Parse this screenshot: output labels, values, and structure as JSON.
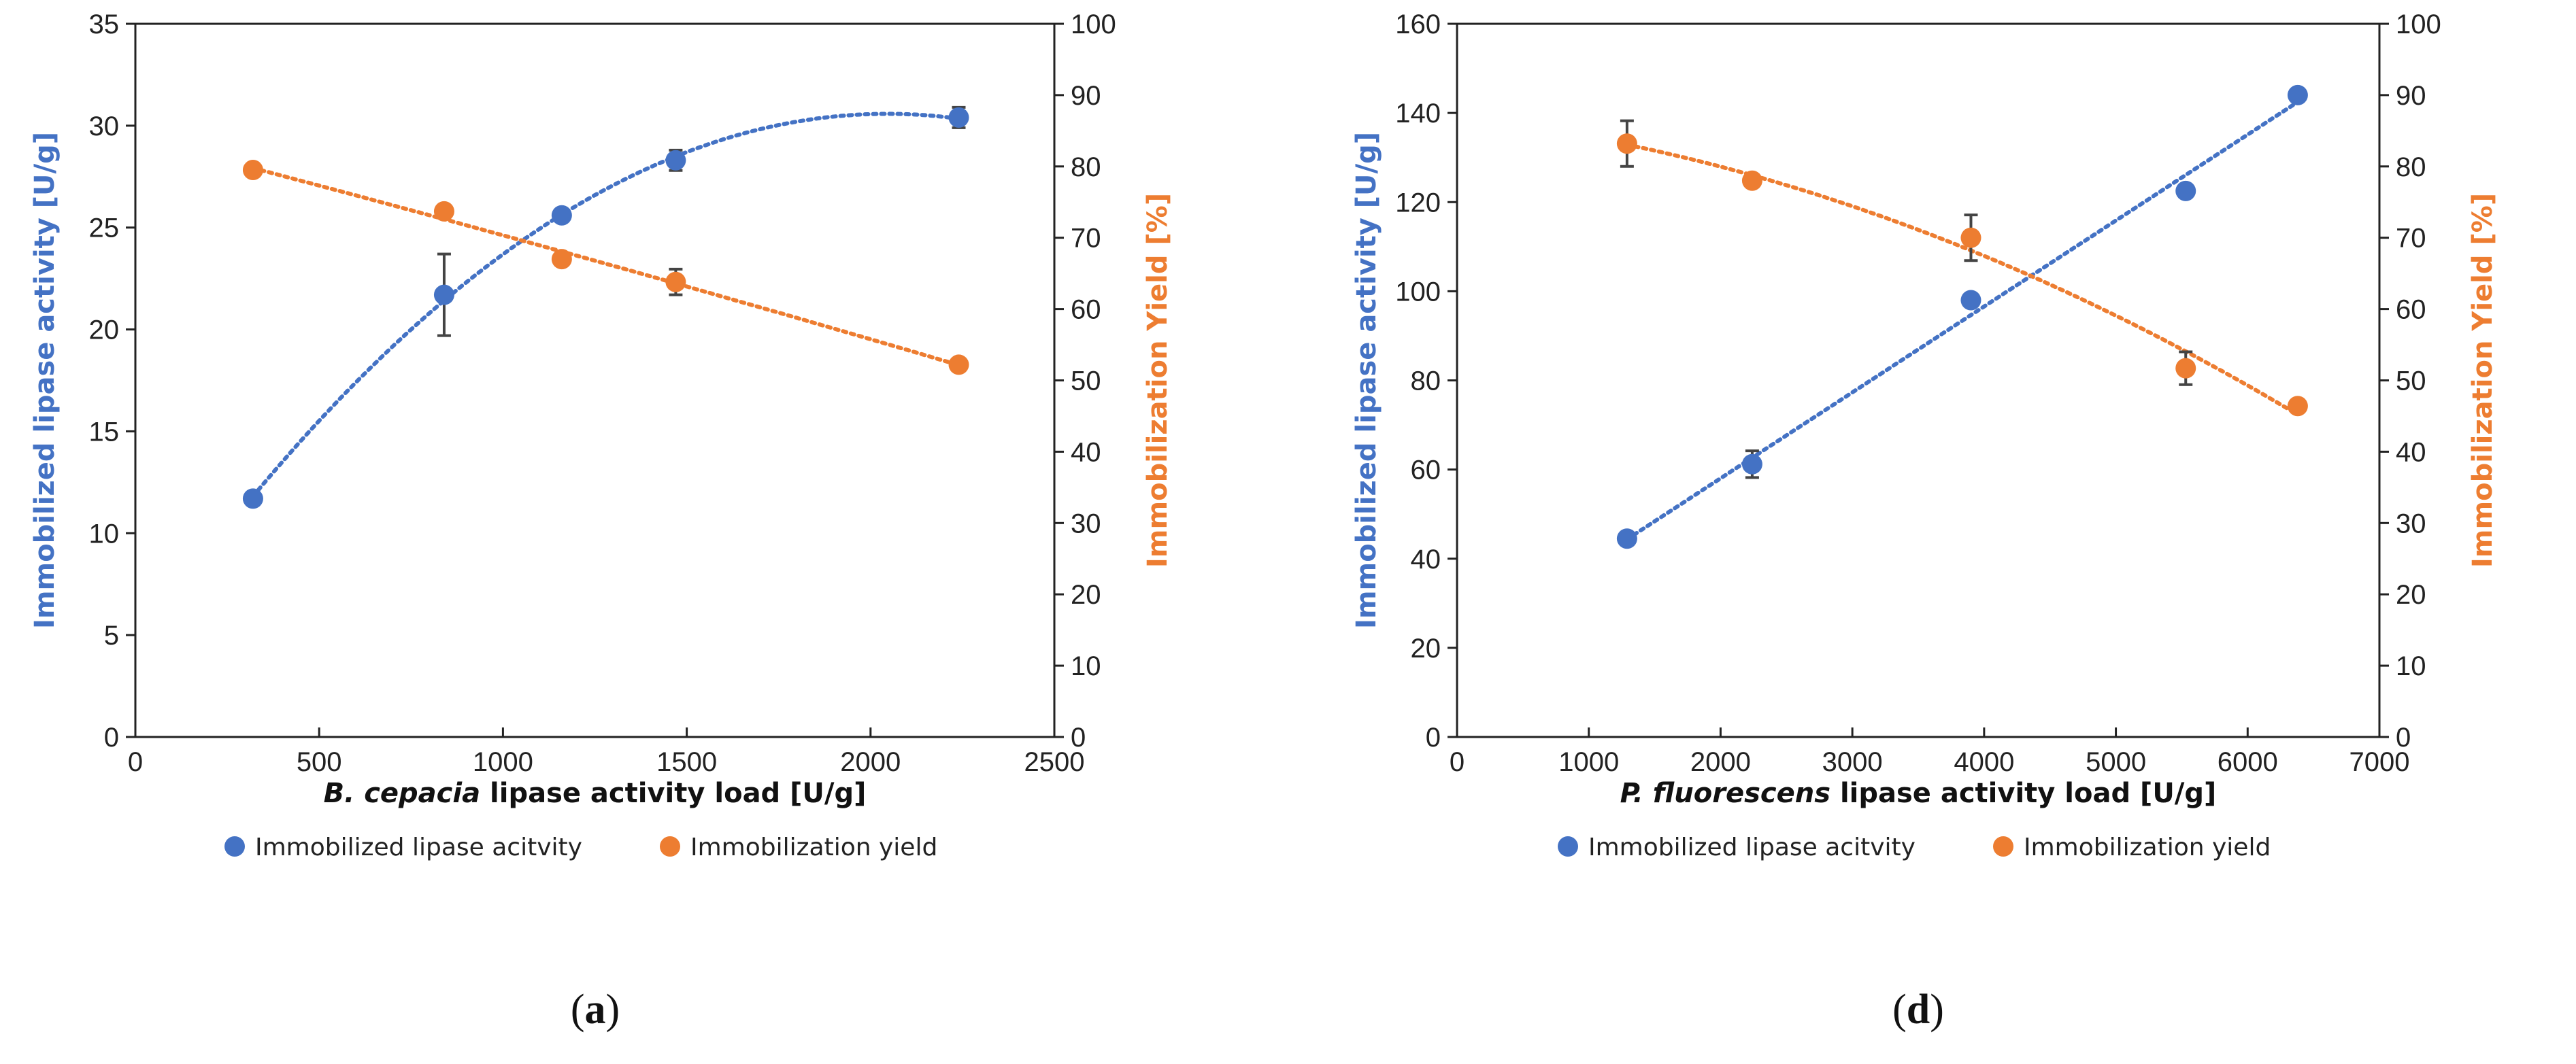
{
  "colors": {
    "blue": "#4472C4",
    "orange": "#ED7D31",
    "error": "#444444"
  },
  "chart_data": [
    {
      "type": "scatter",
      "caption_open": "(",
      "caption_letter": "a",
      "caption_close": ")",
      "xlabel_italic": "B. cepacia",
      "xlabel_rest": " lipase activity load [U/g]",
      "ylabel": "Immobilized lipase activity [U/g]",
      "y2label": "Immobilization Yield [%]",
      "xlim": [
        0,
        2500
      ],
      "xticks": [
        0,
        500,
        1000,
        1500,
        2000,
        2500
      ],
      "ylim": [
        0,
        35
      ],
      "yticks": [
        0,
        5,
        10,
        15,
        20,
        25,
        30,
        35
      ],
      "y2lim": [
        0,
        100
      ],
      "y2ticks": [
        0,
        10,
        20,
        30,
        40,
        50,
        60,
        70,
        80,
        90,
        100
      ],
      "grid": false,
      "legend_position": "bottom",
      "series": [
        {
          "name": "Immobilized lipase acitvity",
          "axis": "left",
          "color": "#4472C4",
          "trendline": "polynomial",
          "x": [
            320,
            840,
            1160,
            1470,
            2240
          ],
          "y": [
            11.7,
            21.7,
            25.6,
            28.3,
            30.4
          ],
          "err": [
            0,
            2.0,
            0,
            0.5,
            0.5
          ]
        },
        {
          "name": "Immobilization yield",
          "axis": "right",
          "color": "#ED7D31",
          "trendline": "polynomial",
          "x": [
            320,
            840,
            1160,
            1470,
            2240
          ],
          "y": [
            79.5,
            73.7,
            67.0,
            63.8,
            52.2
          ],
          "err": [
            0,
            0,
            0,
            1.8,
            0
          ]
        }
      ]
    },
    {
      "type": "scatter",
      "caption_open": "(",
      "caption_letter": "d",
      "caption_close": ")",
      "xlabel_italic": "P. fluorescens",
      "xlabel_rest": " lipase activity load [U/g]",
      "ylabel": "Immobilized lipase activity [U/g]",
      "y2label": "Immobilization Yield [%]",
      "xlim": [
        0,
        7000
      ],
      "xticks": [
        0,
        1000,
        2000,
        3000,
        4000,
        5000,
        6000,
        7000
      ],
      "ylim": [
        0,
        160
      ],
      "yticks": [
        0,
        20,
        40,
        60,
        80,
        100,
        120,
        140,
        160
      ],
      "y2lim": [
        0,
        100
      ],
      "y2ticks": [
        0,
        10,
        20,
        30,
        40,
        50,
        60,
        70,
        80,
        90,
        100
      ],
      "grid": false,
      "legend_position": "bottom",
      "series": [
        {
          "name": "Immobilized lipase acitvity",
          "axis": "left",
          "color": "#4472C4",
          "trendline": "linear",
          "x": [
            1290,
            2240,
            3900,
            5530,
            6380
          ],
          "y": [
            44.5,
            61.2,
            98.0,
            122.5,
            144.0
          ],
          "err": [
            0,
            3.0,
            0,
            0,
            0
          ]
        },
        {
          "name": "Immobilization yield",
          "axis": "right",
          "color": "#ED7D31",
          "trendline": "polynomial",
          "x": [
            1290,
            2240,
            3900,
            5530,
            6380
          ],
          "y": [
            83.2,
            78.0,
            70.0,
            51.7,
            46.4
          ],
          "err": [
            3.2,
            0,
            3.2,
            2.3,
            0
          ]
        }
      ]
    }
  ]
}
